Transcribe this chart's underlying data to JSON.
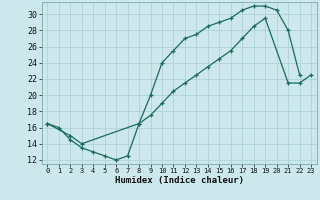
{
  "title": "",
  "xlabel": "Humidex (Indice chaleur)",
  "bg_color": "#cce8ec",
  "line_color": "#1a6b5e",
  "grid_color": "#aacdd4",
  "xlim": [
    -0.5,
    23.5
  ],
  "ylim": [
    11.5,
    31.5
  ],
  "xticks": [
    0,
    1,
    2,
    3,
    4,
    5,
    6,
    7,
    8,
    9,
    10,
    11,
    12,
    13,
    14,
    15,
    16,
    17,
    18,
    19,
    20,
    21,
    22,
    23
  ],
  "yticks": [
    12,
    14,
    16,
    18,
    20,
    22,
    24,
    26,
    28,
    30
  ],
  "line1_x": [
    0,
    1,
    2,
    3,
    4,
    5,
    6,
    7,
    8,
    9,
    10,
    11,
    12,
    13,
    14,
    15,
    16,
    17,
    18,
    19,
    20,
    21,
    22
  ],
  "line1_y": [
    16.5,
    16.0,
    14.5,
    13.5,
    13.0,
    12.5,
    12.0,
    12.5,
    16.5,
    20.0,
    24.0,
    25.5,
    27.0,
    27.5,
    28.5,
    29.0,
    29.5,
    30.5,
    31.0,
    31.0,
    30.5,
    28.0,
    22.5
  ],
  "line2_x": [
    0,
    2,
    3,
    8,
    9,
    10,
    11,
    12,
    13,
    14,
    15,
    16,
    17,
    18,
    19,
    21,
    22,
    23
  ],
  "line2_y": [
    16.5,
    15.0,
    14.0,
    16.5,
    17.5,
    19.0,
    20.5,
    21.5,
    22.5,
    23.5,
    24.5,
    25.5,
    27.0,
    28.5,
    29.5,
    21.5,
    21.5,
    22.5
  ]
}
